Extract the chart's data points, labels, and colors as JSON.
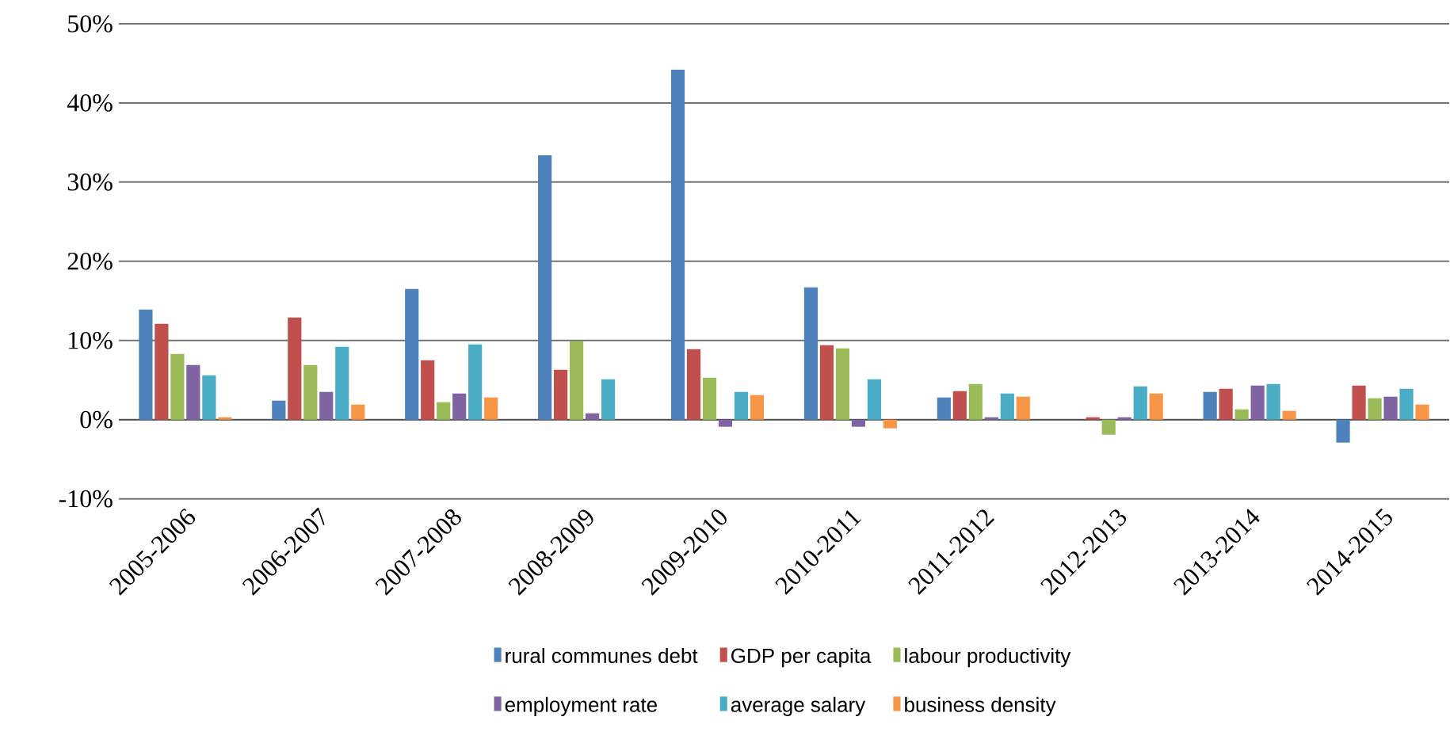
{
  "chart_data": {
    "type": "bar",
    "categories": [
      "2005-2006",
      "2006-2007",
      "2007-2008",
      "2008-2009",
      "2009-2010",
      "2010-2011",
      "2011-2012",
      "2012-2013",
      "2013-2014",
      "2014-2015"
    ],
    "series": [
      {
        "name": "rural communes debt",
        "color": "#4f81bd",
        "values": [
          13.9,
          2.4,
          16.5,
          33.4,
          44.2,
          16.7,
          2.8,
          0,
          3.5,
          -2.9
        ]
      },
      {
        "name": "GDP per capita",
        "color": "#c0504d",
        "values": [
          12.1,
          12.9,
          7.5,
          6.3,
          8.9,
          9.4,
          3.6,
          0.3,
          3.9,
          4.3
        ]
      },
      {
        "name": "labour productivity",
        "color": "#9bbb59",
        "values": [
          8.3,
          6.9,
          2.2,
          9.9,
          5.3,
          9.0,
          4.5,
          -1.9,
          1.3,
          2.7
        ]
      },
      {
        "name": "employment rate",
        "color": "#8064a2",
        "values": [
          6.9,
          3.5,
          3.3,
          0.8,
          -0.9,
          -0.9,
          0.3,
          0.3,
          4.3,
          2.9
        ]
      },
      {
        "name": "average salary",
        "color": "#4bacc6",
        "values": [
          5.6,
          9.2,
          9.5,
          5.1,
          3.5,
          5.1,
          3.3,
          4.2,
          4.5,
          3.9
        ]
      },
      {
        "name": "business density",
        "color": "#f79646",
        "values": [
          0.3,
          1.9,
          2.8,
          0,
          3.1,
          -1.1,
          2.9,
          3.3,
          1.1,
          1.9
        ]
      }
    ],
    "ylim": [
      -10,
      50
    ],
    "yticks": [
      {
        "value": -10,
        "label": "-10%"
      },
      {
        "value": 0,
        "label": "0%"
      },
      {
        "value": 10,
        "label": "10%"
      },
      {
        "value": 20,
        "label": "20%"
      },
      {
        "value": 30,
        "label": "30%"
      },
      {
        "value": 40,
        "label": "40%"
      },
      {
        "value": 50,
        "label": "50%"
      }
    ],
    "grid": "y",
    "legend": "bottom"
  }
}
